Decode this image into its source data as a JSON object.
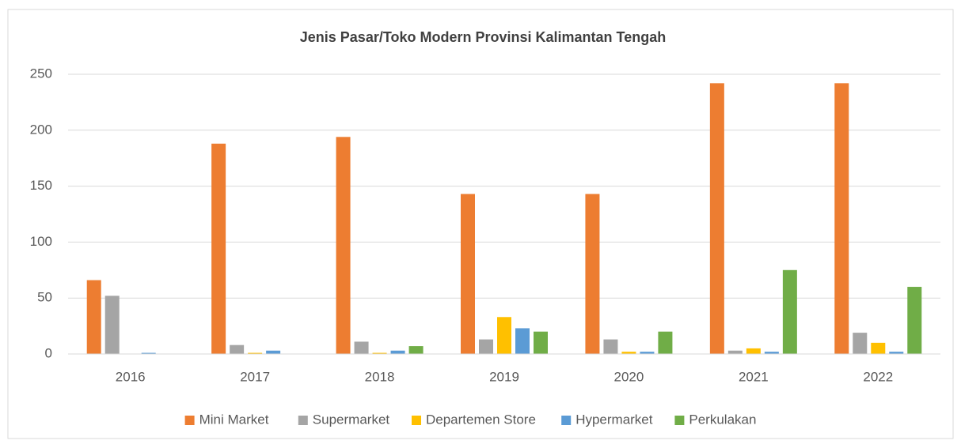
{
  "chart_data": {
    "type": "bar",
    "title": "Jenis Pasar/Toko Modern Provinsi Kalimantan Tengah",
    "categories": [
      "2016",
      "2017",
      "2018",
      "2019",
      "2020",
      "2021",
      "2022"
    ],
    "series": [
      {
        "name": "Mini Market",
        "color": "#ed7d31",
        "values": [
          66,
          188,
          194,
          143,
          143,
          242,
          242
        ]
      },
      {
        "name": "Supermarket",
        "color": "#a5a5a5",
        "values": [
          52,
          8,
          11,
          13,
          13,
          3,
          19
        ]
      },
      {
        "name": "Departemen Store",
        "color": "#ffc000",
        "values": [
          0,
          1,
          1,
          33,
          2,
          5,
          10
        ]
      },
      {
        "name": "Hypermarket",
        "color": "#5b9bd5",
        "values": [
          1,
          3,
          3,
          23,
          2,
          2,
          2
        ]
      },
      {
        "name": "Perkulakan",
        "color": "#70ad47",
        "values": [
          0,
          0,
          7,
          20,
          20,
          75,
          60
        ]
      }
    ],
    "ylim": [
      0,
      250
    ],
    "yticks": [
      0,
      50,
      100,
      150,
      200,
      250
    ],
    "grid": true,
    "legend": "bottom"
  }
}
